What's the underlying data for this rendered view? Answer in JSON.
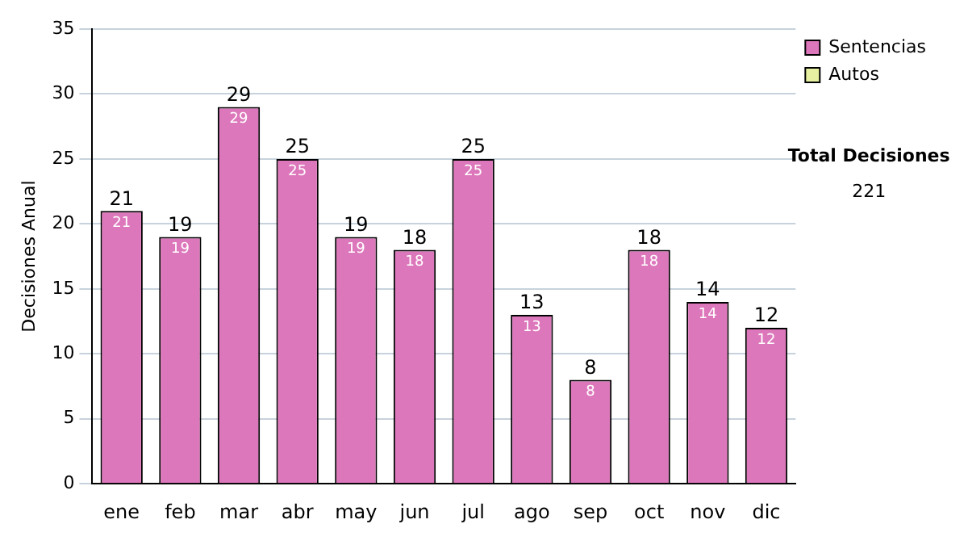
{
  "chart_data": {
    "type": "bar",
    "stacked": true,
    "ylabel": "Decisiones Anual",
    "categories": [
      "ene",
      "feb",
      "mar",
      "abr",
      "may",
      "jun",
      "jul",
      "ago",
      "sep",
      "oct",
      "nov",
      "dic"
    ],
    "series": [
      {
        "name": "Sentencias",
        "color": "#dd77bb",
        "values": [
          21,
          19,
          29,
          25,
          19,
          18,
          25,
          13,
          8,
          18,
          14,
          12
        ]
      },
      {
        "name": "Autos",
        "color": "#e6f0a0",
        "values": [
          null,
          null,
          null,
          null,
          null,
          null,
          null,
          null,
          null,
          null,
          null,
          null
        ]
      }
    ],
    "ylim": [
      0,
      35
    ],
    "yticks": [
      0,
      5,
      10,
      15,
      20,
      25,
      30,
      35
    ],
    "grid": "y",
    "legend": "right",
    "data_labels": true,
    "totals": [
      "21",
      "19",
      "29",
      "25",
      "19",
      "18",
      "25",
      "13",
      "8",
      "18",
      "14",
      "12"
    ],
    "annotations": [
      "Total Decisiones",
      "221"
    ]
  }
}
